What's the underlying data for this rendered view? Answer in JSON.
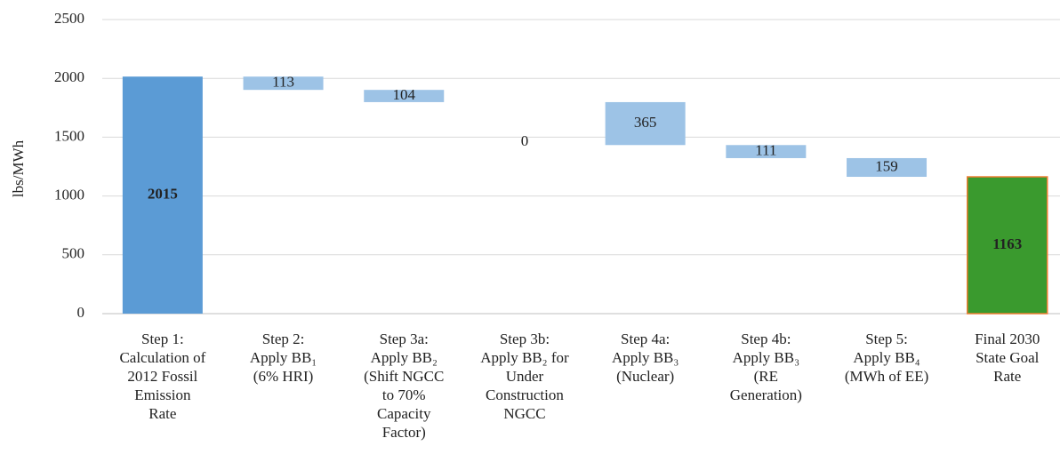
{
  "chart_data": {
    "type": "waterfall",
    "y_label": "lbs/MWh",
    "categories": [
      [
        "Step 1:",
        "Calculation of",
        "2012 Fossil",
        "Emission",
        "Rate"
      ],
      [
        "Step 2:",
        "Apply BB₁",
        "(6% HRI)"
      ],
      [
        "Step 3a:",
        "Apply BB₂",
        "(Shift NGCC",
        "to 70%",
        "Capacity",
        "Factor)"
      ],
      [
        "Step 3b:",
        "Apply BB₂ for",
        "Under",
        "Construction",
        "NGCC"
      ],
      [
        "Step 4a:",
        "Apply BB₃",
        "(Nuclear)"
      ],
      [
        "Step 4b:",
        "Apply BB₃",
        "(RE",
        "Generation)"
      ],
      [
        "Step 5:",
        "Apply BB₄",
        "(MWh of EE)"
      ],
      [
        "Final 2030",
        "State Goal",
        "Rate"
      ]
    ],
    "values": [
      2015,
      -113,
      -104,
      0,
      -365,
      -111,
      -159,
      1163
    ],
    "value_labels": [
      "2015",
      "113",
      "104",
      "0",
      "365",
      "111",
      "159",
      "1163"
    ],
    "colors": [
      "#5b9bd5",
      "#9dc3e6",
      "#9dc3e6",
      "#9dc3e6",
      "#9dc3e6",
      "#9dc3e6",
      "#9dc3e6",
      "#3a9a2e"
    ],
    "ylim": [
      0,
      2500
    ],
    "yticks": [
      0,
      500,
      1000,
      1500,
      2000,
      2500
    ],
    "grid": true
  }
}
